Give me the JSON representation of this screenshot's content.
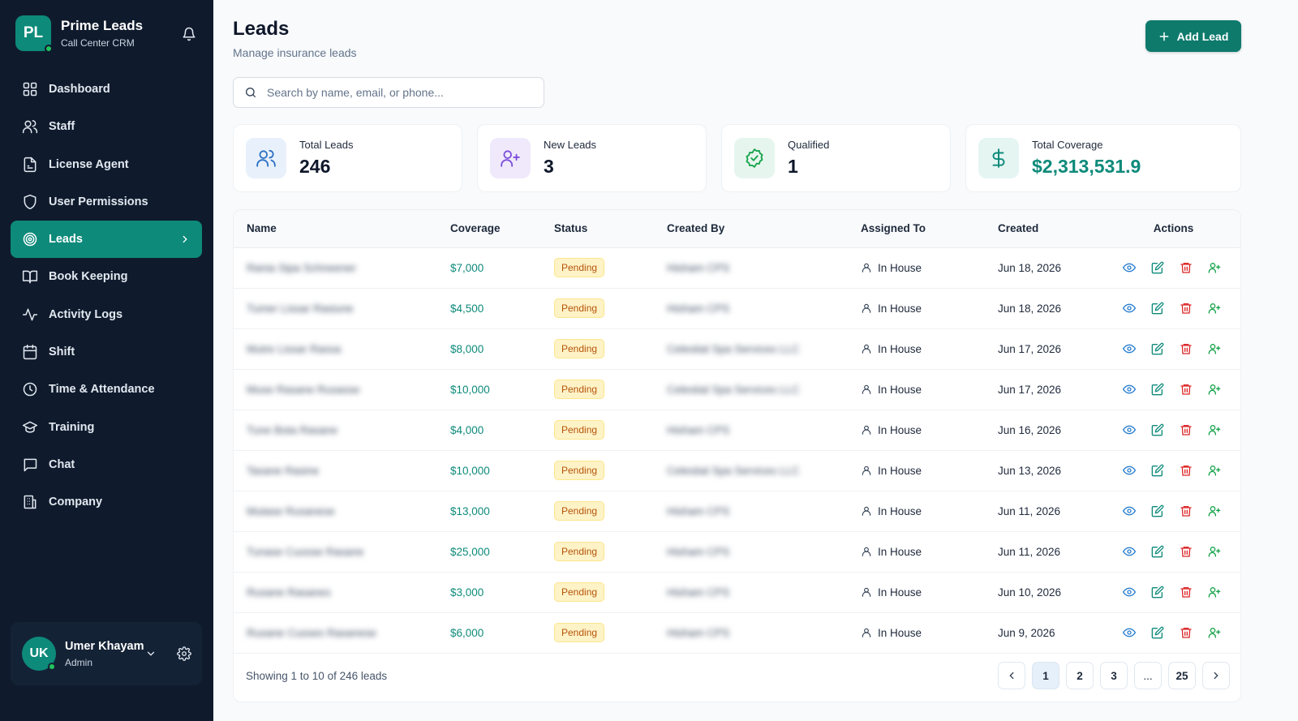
{
  "brand": {
    "initials": "PL",
    "title": "Prime Leads",
    "subtitle": "Call Center CRM"
  },
  "sidebar": {
    "items": [
      {
        "label": "Dashboard",
        "icon": "grid-icon"
      },
      {
        "label": "Staff",
        "icon": "users-icon"
      },
      {
        "label": "License Agent",
        "icon": "file-icon"
      },
      {
        "label": "User Permissions",
        "icon": "shield-icon"
      },
      {
        "label": "Leads",
        "icon": "target-icon",
        "active": true
      },
      {
        "label": "Book Keeping",
        "icon": "book-icon"
      },
      {
        "label": "Activity Logs",
        "icon": "activity-icon"
      },
      {
        "label": "Shift",
        "icon": "calendar-icon"
      },
      {
        "label": "Time & Attendance",
        "icon": "clock-icon"
      },
      {
        "label": "Training",
        "icon": "graduation-cap-icon"
      },
      {
        "label": "Chat",
        "icon": "chat-icon"
      },
      {
        "label": "Company",
        "icon": "building-icon"
      }
    ]
  },
  "user": {
    "initials": "UK",
    "name": "Umer Khayam",
    "role": "Admin"
  },
  "header": {
    "title": "Leads",
    "subtitle": "Manage insurance leads",
    "add_label": "Add Lead"
  },
  "search": {
    "placeholder": "Search by name, email, or phone..."
  },
  "stats": [
    {
      "label": "Total Leads",
      "value": "246"
    },
    {
      "label": "New Leads",
      "value": "3"
    },
    {
      "label": "Qualified",
      "value": "1"
    },
    {
      "label": "Total Coverage",
      "value": "$2,313,531.9"
    }
  ],
  "table": {
    "headers": [
      "Name",
      "Coverage",
      "Status",
      "Created By",
      "Assigned To",
      "Created",
      "Actions"
    ],
    "rows": [
      {
        "name": "Rania Sipa Schneener",
        "coverage": "$7,000",
        "status": "Pending",
        "created_by": "Hisham CPS",
        "assigned": "In House",
        "created": "Jun 18, 2026"
      },
      {
        "name": "Tumer Lissar Rasiune",
        "coverage": "$4,500",
        "status": "Pending",
        "created_by": "Hisham CPS",
        "assigned": "In House",
        "created": "Jun 18, 2026"
      },
      {
        "name": "Mutre Lissar Rassa",
        "coverage": "$8,000",
        "status": "Pending",
        "created_by": "Celestial Spa Services LLC",
        "assigned": "In House",
        "created": "Jun 17, 2026"
      },
      {
        "name": "Muse Rasane Rusasse",
        "coverage": "$10,000",
        "status": "Pending",
        "created_by": "Celestial Spa Services LLC",
        "assigned": "In House",
        "created": "Jun 17, 2026"
      },
      {
        "name": "Tune Bota Rasane",
        "coverage": "$4,000",
        "status": "Pending",
        "created_by": "Hisham CPS",
        "assigned": "In House",
        "created": "Jun 16, 2026"
      },
      {
        "name": "Tasane Rasine",
        "coverage": "$10,000",
        "status": "Pending",
        "created_by": "Celestial Spa Services LLC",
        "assigned": "In House",
        "created": "Jun 13, 2026"
      },
      {
        "name": "Mutase Rusanese",
        "coverage": "$13,000",
        "status": "Pending",
        "created_by": "Hisham CPS",
        "assigned": "In House",
        "created": "Jun 11, 2026"
      },
      {
        "name": "Tunase Cuosse Rasane",
        "coverage": "$25,000",
        "status": "Pending",
        "created_by": "Hisham CPS",
        "assigned": "In House",
        "created": "Jun 11, 2026"
      },
      {
        "name": "Rusane Rasanes",
        "coverage": "$3,000",
        "status": "Pending",
        "created_by": "Hisham CPS",
        "assigned": "In House",
        "created": "Jun 10, 2026"
      },
      {
        "name": "Rusane Cusses Rasanese",
        "coverage": "$6,000",
        "status": "Pending",
        "created_by": "Hisham CPS",
        "assigned": "In House",
        "created": "Jun 9, 2026"
      }
    ]
  },
  "pagination": {
    "showing": "Showing 1 to 10 of 246 leads",
    "pages": [
      "1",
      "2",
      "3",
      "...",
      "25"
    ],
    "current": "1"
  },
  "colors": {
    "sidebar_bg": "#0f1b2d",
    "accent": "#0d8a7a",
    "pending_bg": "#fef3c7",
    "pending_text": "#b45309",
    "view": "#2a7fd0",
    "edit": "#0d8a7a",
    "delete": "#dc2626"
  }
}
